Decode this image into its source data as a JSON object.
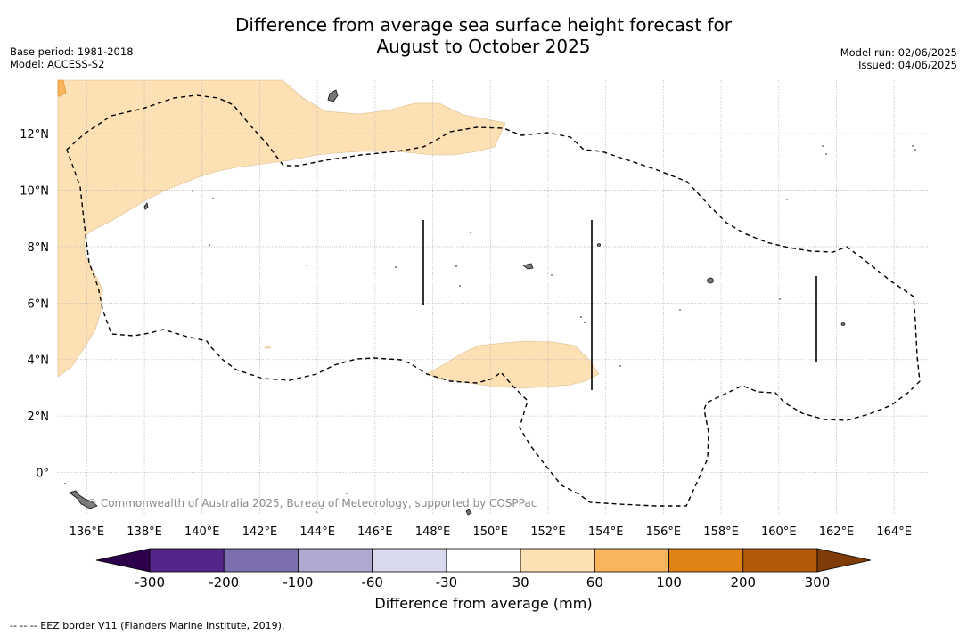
{
  "title": {
    "line1": "Difference from average sea surface height forecast for",
    "line2": "August to October 2025"
  },
  "meta_left": {
    "base_period": "Base period: 1981-2018",
    "model": "Model: ACCESS-S2"
  },
  "meta_right": {
    "model_run": "Model run: 02/06/2025",
    "issued": "Issued: 04/06/2025"
  },
  "map": {
    "lon_labels": [
      "136°E",
      "138°E",
      "140°E",
      "142°E",
      "144°E",
      "146°E",
      "148°E",
      "150°E",
      "152°E",
      "154°E",
      "156°E",
      "158°E",
      "160°E",
      "162°E",
      "164°E"
    ],
    "lon_values": [
      136,
      138,
      140,
      142,
      144,
      146,
      148,
      150,
      152,
      154,
      156,
      158,
      160,
      162,
      164
    ],
    "lat_labels": [
      "12°N",
      "10°N",
      "8°N",
      "6°N",
      "4°N",
      "2°N",
      "0°"
    ],
    "lat_values": [
      12,
      10,
      8,
      6,
      4,
      2,
      0
    ],
    "lon_range": [
      135,
      165.2
    ],
    "lat_range": [
      -1.5,
      13.9
    ],
    "copyright": "© Commonwealth of Australia 2025, Bureau of Meteorology, supported by COSPPac",
    "anomaly_color_30_60": "#fde0b4",
    "eez_line_style": "dashed"
  },
  "colorbar": {
    "labels": [
      "-300",
      "-200",
      "-100",
      "-60",
      "-30",
      "30",
      "60",
      "100",
      "200",
      "300"
    ],
    "colors": [
      "#542689",
      "#7d6eae",
      "#afa8d1",
      "#d8d9ec",
      "#ffffff",
      "#fde0b4",
      "#f8b55e",
      "#e08215",
      "#b35a09"
    ],
    "under_color": "#2d004b",
    "over_color": "#7f3b08",
    "title": "Difference from average (mm)"
  },
  "footer": "-- -- -- EEZ border V11 (Flanders Marine Institute, 2019)."
}
